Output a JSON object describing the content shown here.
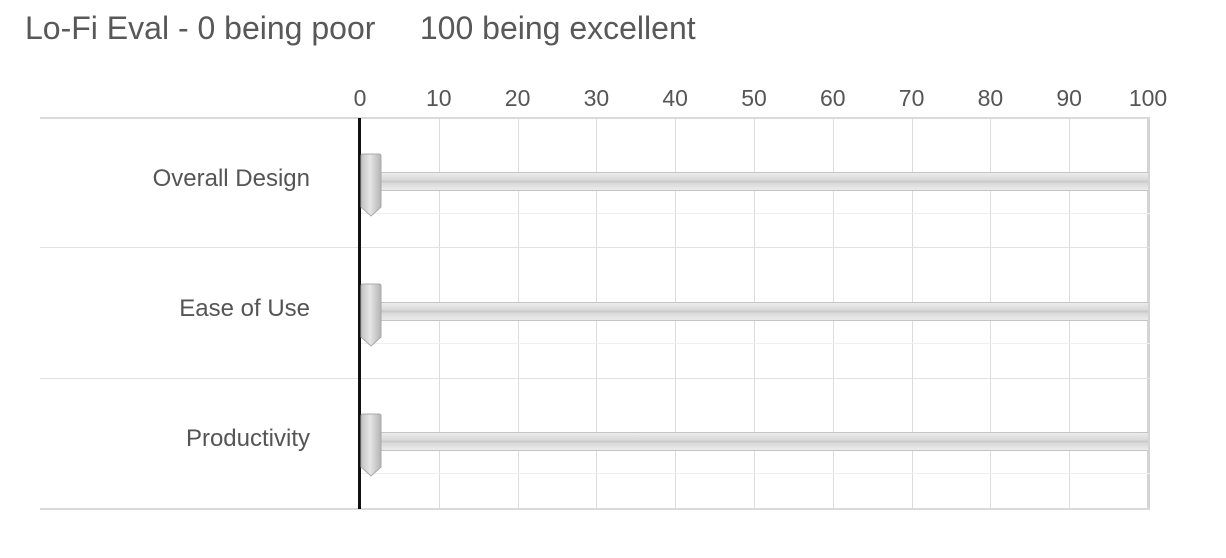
{
  "question": {
    "title": "Lo-Fi Eval - 0 being poor     100 being excellent"
  },
  "scale": {
    "min": 0,
    "max": 100,
    "ticks": [
      "0",
      "10",
      "20",
      "30",
      "40",
      "50",
      "60",
      "70",
      "80",
      "90",
      "100"
    ]
  },
  "rows": [
    {
      "label": "Overall Design",
      "value": 0
    },
    {
      "label": "Ease of Use",
      "value": 0
    },
    {
      "label": "Productivity",
      "value": 0
    }
  ],
  "colors": {
    "title_text": "#585858",
    "label_text": "#555555",
    "zero_line": "#111111",
    "grid": "#dcdcdc",
    "track": "#d4d4d4"
  }
}
